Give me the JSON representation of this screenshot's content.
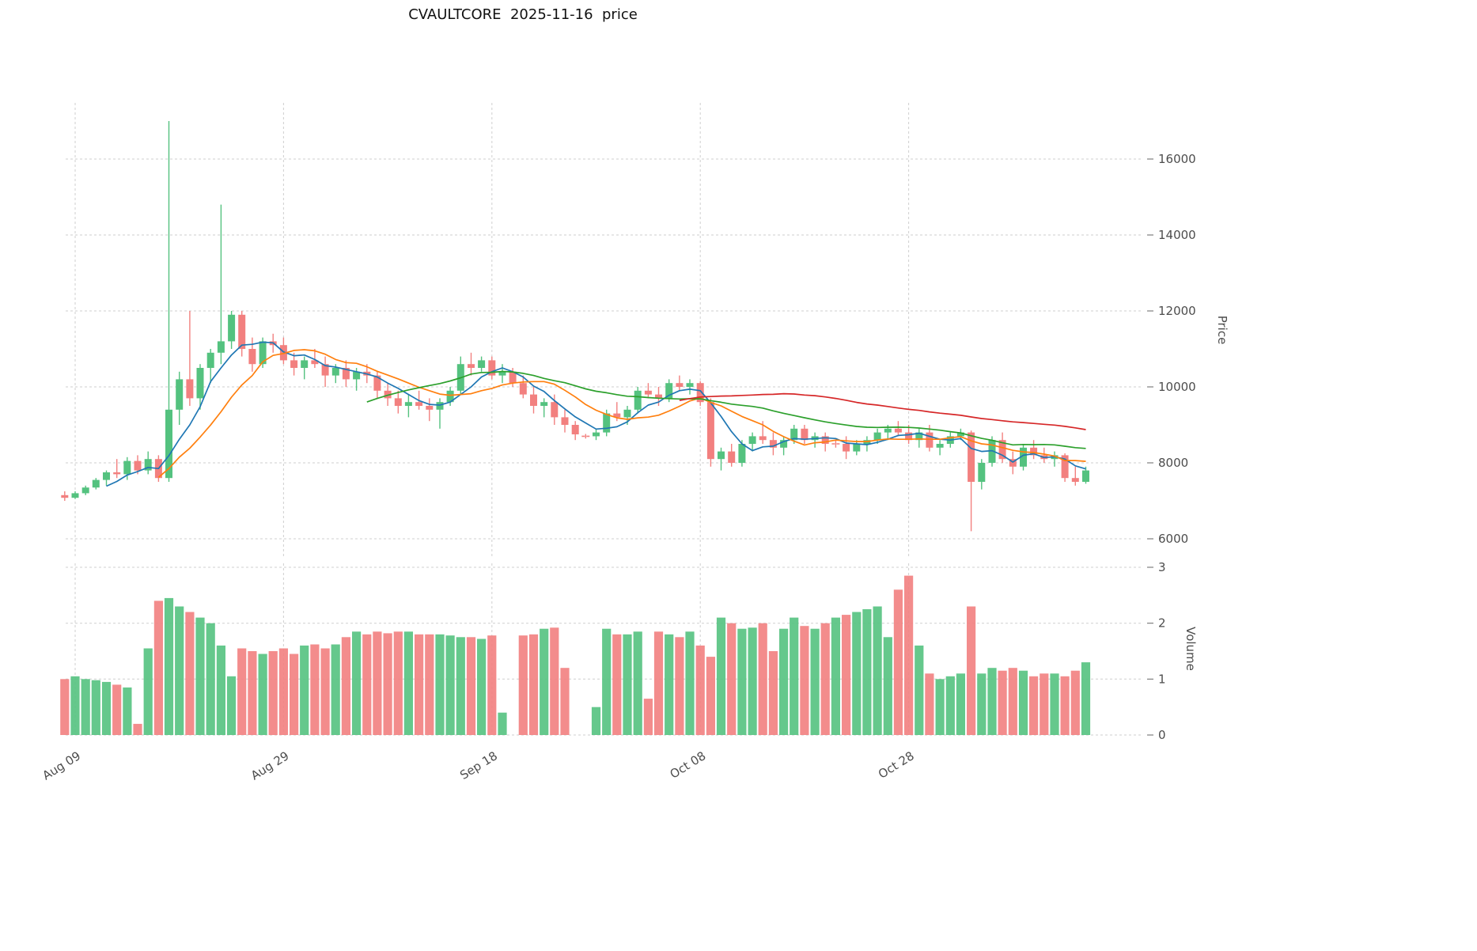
{
  "chart_data": {
    "type": "candlestick",
    "title": "CVAULTCORE  2025-11-16  price",
    "xlabel": "",
    "ylabel": "Price",
    "ylabel2": "Volume",
    "grid": true,
    "legend_position": "none",
    "price_ticks": [
      6000,
      8000,
      10000,
      12000,
      14000,
      16000
    ],
    "volume_ticks": [
      0,
      1,
      2,
      3
    ],
    "ylim_price": [
      5600,
      17500
    ],
    "ylim_volume": [
      0,
      3
    ],
    "x_ticks": [
      {
        "index": 1,
        "label": "Aug 09"
      },
      {
        "index": 21,
        "label": "Aug 29"
      },
      {
        "index": 41,
        "label": "Sep 18"
      },
      {
        "index": 61,
        "label": "Oct 08"
      },
      {
        "index": 81,
        "label": "Oct 28"
      }
    ],
    "ma_lines": [
      {
        "name": "ma-short",
        "window": 5,
        "color": "#1f77b4"
      },
      {
        "name": "ma-mid",
        "window": 10,
        "color": "#ff7f0e"
      },
      {
        "name": "ma-long",
        "window": 30,
        "color": "#2ca02c"
      },
      {
        "name": "ma-longest",
        "window": 60,
        "color": "#d62728"
      }
    ],
    "colors": {
      "up": "#54c27f",
      "down": "#f2807f",
      "grid": "#cfcfcf",
      "tick_text": "#4d4d4d",
      "title_text": "#111111"
    },
    "candles": {
      "columns": [
        "open",
        "high",
        "low",
        "close",
        "volume"
      ],
      "rows": [
        [
          7150,
          7250,
          7000,
          7080,
          1.0
        ],
        [
          7080,
          7250,
          7050,
          7200,
          1.05
        ],
        [
          7200,
          7400,
          7150,
          7350,
          1.0
        ],
        [
          7350,
          7600,
          7300,
          7550,
          0.98
        ],
        [
          7550,
          7800,
          7400,
          7750,
          0.95
        ],
        [
          7750,
          8100,
          7600,
          7700,
          0.9
        ],
        [
          7700,
          8150,
          7550,
          8050,
          0.85
        ],
        [
          8050,
          8200,
          7700,
          7800,
          0.2
        ],
        [
          7800,
          8300,
          7700,
          8100,
          1.55
        ],
        [
          8100,
          8200,
          7500,
          7600,
          2.4
        ],
        [
          7600,
          17000,
          7500,
          9400,
          2.45
        ],
        [
          9400,
          10400,
          9000,
          10200,
          2.3
        ],
        [
          10200,
          12000,
          9500,
          9700,
          2.2
        ],
        [
          9700,
          10600,
          9400,
          10500,
          2.1
        ],
        [
          10500,
          11000,
          10100,
          10900,
          2.0
        ],
        [
          10900,
          14800,
          10600,
          11200,
          1.6
        ],
        [
          11200,
          12000,
          11000,
          11900,
          1.05
        ],
        [
          11900,
          12000,
          10800,
          11000,
          1.55
        ],
        [
          11000,
          11300,
          10400,
          10600,
          1.5
        ],
        [
          10600,
          11300,
          10500,
          11200,
          1.45
        ],
        [
          11200,
          11400,
          10900,
          11100,
          1.5
        ],
        [
          11100,
          11300,
          10600,
          10700,
          1.55
        ],
        [
          10700,
          10900,
          10300,
          10500,
          1.45
        ],
        [
          10500,
          10800,
          10200,
          10700,
          1.6
        ],
        [
          10700,
          11000,
          10500,
          10600,
          1.62
        ],
        [
          10600,
          10800,
          10000,
          10300,
          1.55
        ],
        [
          10300,
          10600,
          10100,
          10500,
          1.62
        ],
        [
          10500,
          10700,
          10000,
          10200,
          1.75
        ],
        [
          10200,
          10500,
          9900,
          10400,
          1.85
        ],
        [
          10400,
          10600,
          10100,
          10300,
          1.8
        ],
        [
          10300,
          10400,
          9700,
          9900,
          1.85
        ],
        [
          9900,
          10100,
          9500,
          9700,
          1.82
        ],
        [
          9700,
          9900,
          9300,
          9500,
          1.85
        ],
        [
          9500,
          9800,
          9200,
          9600,
          1.85
        ],
        [
          9600,
          9900,
          9400,
          9500,
          1.8
        ],
        [
          9500,
          9700,
          9100,
          9400,
          1.8
        ],
        [
          9400,
          9700,
          8900,
          9600,
          1.8
        ],
        [
          9600,
          10000,
          9500,
          9900,
          1.78
        ],
        [
          9900,
          10800,
          9800,
          10600,
          1.75
        ],
        [
          10600,
          10900,
          10300,
          10500,
          1.75
        ],
        [
          10500,
          10800,
          10400,
          10700,
          1.72
        ],
        [
          10700,
          10800,
          10200,
          10300,
          1.78
        ],
        [
          10300,
          10600,
          10100,
          10400,
          0.4
        ],
        [
          10400,
          10500,
          10000,
          10100,
          0
        ],
        [
          10100,
          10300,
          9700,
          9800,
          1.78
        ],
        [
          9800,
          10000,
          9300,
          9500,
          1.8
        ],
        [
          9500,
          9700,
          9200,
          9600,
          1.9
        ],
        [
          9600,
          9800,
          9000,
          9200,
          1.92
        ],
        [
          9200,
          9400,
          8800,
          9000,
          1.2
        ],
        [
          9000,
          9100,
          8600,
          8750,
          0
        ],
        [
          8700,
          8760,
          8640,
          8700,
          0
        ],
        [
          8700,
          8900,
          8600,
          8800,
          0.5
        ],
        [
          8800,
          9400,
          8700,
          9300,
          1.9
        ],
        [
          9300,
          9600,
          9100,
          9200,
          1.8
        ],
        [
          9200,
          9500,
          9000,
          9400,
          1.8
        ],
        [
          9400,
          10000,
          9300,
          9900,
          1.85
        ],
        [
          9900,
          10100,
          9700,
          9800,
          0.65
        ],
        [
          9800,
          10000,
          9500,
          9700,
          1.85
        ],
        [
          9700,
          10200,
          9600,
          10100,
          1.8
        ],
        [
          10100,
          10300,
          9900,
          10000,
          1.75
        ],
        [
          10000,
          10200,
          9800,
          10100,
          1.85
        ],
        [
          10100,
          10150,
          9500,
          9600,
          1.6
        ],
        [
          9600,
          9700,
          7900,
          8100,
          1.4
        ],
        [
          8100,
          8400,
          7800,
          8300,
          2.1
        ],
        [
          8300,
          8500,
          7900,
          8000,
          2.0
        ],
        [
          8000,
          8600,
          7900,
          8500,
          1.9
        ],
        [
          8500,
          8800,
          8300,
          8700,
          1.92
        ],
        [
          8700,
          9100,
          8500,
          8600,
          2.0
        ],
        [
          8600,
          8800,
          8200,
          8400,
          1.5
        ],
        [
          8400,
          8700,
          8200,
          8600,
          1.9
        ],
        [
          8600,
          9000,
          8500,
          8900,
          2.1
        ],
        [
          8900,
          9000,
          8500,
          8600,
          1.95
        ],
        [
          8600,
          8800,
          8400,
          8700,
          1.9
        ],
        [
          8700,
          8800,
          8300,
          8500,
          2.0
        ],
        [
          8500,
          8600,
          8400,
          8500,
          2.1
        ],
        [
          8500,
          8700,
          8100,
          8300,
          2.15
        ],
        [
          8300,
          8600,
          8200,
          8500,
          2.2
        ],
        [
          8500,
          8700,
          8300,
          8600,
          2.25
        ],
        [
          8600,
          8900,
          8500,
          8800,
          2.3
        ],
        [
          8800,
          9000,
          8600,
          8900,
          1.75
        ],
        [
          8900,
          9100,
          8700,
          8800,
          2.6
        ],
        [
          8800,
          9000,
          8500,
          8600,
          2.85
        ],
        [
          8600,
          8900,
          8400,
          8800,
          1.6
        ],
        [
          8800,
          9000,
          8300,
          8400,
          1.1
        ],
        [
          8400,
          8600,
          8200,
          8500,
          1.0
        ],
        [
          8500,
          8800,
          8400,
          8700,
          1.05
        ],
        [
          8700,
          8900,
          8600,
          8800,
          1.1
        ],
        [
          8800,
          8850,
          6200,
          7500,
          2.3
        ],
        [
          7500,
          8100,
          7300,
          8000,
          1.1
        ],
        [
          8000,
          8700,
          7900,
          8600,
          1.2
        ],
        [
          8600,
          8800,
          8000,
          8100,
          1.15
        ],
        [
          8100,
          8300,
          7700,
          7900,
          1.2
        ],
        [
          7900,
          8500,
          7800,
          8400,
          1.15
        ],
        [
          8400,
          8600,
          8100,
          8200,
          1.05
        ],
        [
          8200,
          8400,
          8000,
          8100,
          1.1
        ],
        [
          8100,
          8300,
          7900,
          8200,
          1.1
        ],
        [
          8200,
          8250,
          7500,
          7600,
          1.05
        ],
        [
          7600,
          7900,
          7400,
          7500,
          1.15
        ],
        [
          7500,
          7900,
          7450,
          7800,
          1.3
        ]
      ]
    }
  }
}
